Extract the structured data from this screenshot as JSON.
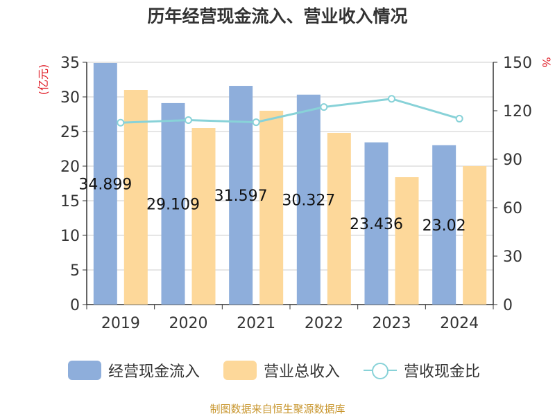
{
  "title": "历年经营现金流入、营业收入情况",
  "source": "制图数据来自恒生聚源数据库",
  "colors": {
    "cash_inflow": "#8eaedb",
    "revenue": "#fdd89a",
    "ratio": "#88d2d8",
    "left_unit": "#e0202a",
    "right_unit": "#e0202a",
    "source": "#c8962e"
  },
  "chart_data": {
    "type": "bar",
    "title": "历年经营现金流入、营业收入情况",
    "categories": [
      "2019",
      "2020",
      "2021",
      "2022",
      "2023",
      "2024"
    ],
    "y_left": {
      "label": "(亿元)",
      "range": [
        0,
        35
      ],
      "ticks": [
        "0",
        "5",
        "10",
        "15",
        "20",
        "25",
        "30",
        "35"
      ]
    },
    "y_right": {
      "label": "%",
      "range": [
        0,
        150
      ],
      "ticks": [
        "0",
        "30",
        "60",
        "90",
        "120",
        "150"
      ]
    },
    "grid": true,
    "legend_position": "bottom",
    "series": [
      {
        "name": "经营现金流入",
        "type": "bar",
        "axis": "left",
        "values": [
          34.899,
          29.109,
          31.597,
          30.327,
          23.436,
          23.02
        ],
        "labels": [
          "34.899",
          "29.109",
          "31.597",
          "30.327",
          "23.436",
          "23.02"
        ]
      },
      {
        "name": "营业总收入",
        "type": "bar",
        "axis": "left",
        "values": [
          31.0,
          25.5,
          28.0,
          24.8,
          18.4,
          20.0
        ]
      },
      {
        "name": "营收现金比",
        "type": "line",
        "axis": "right",
        "values": [
          112.6,
          114.2,
          112.9,
          122.3,
          127.4,
          115.1
        ]
      }
    ]
  }
}
